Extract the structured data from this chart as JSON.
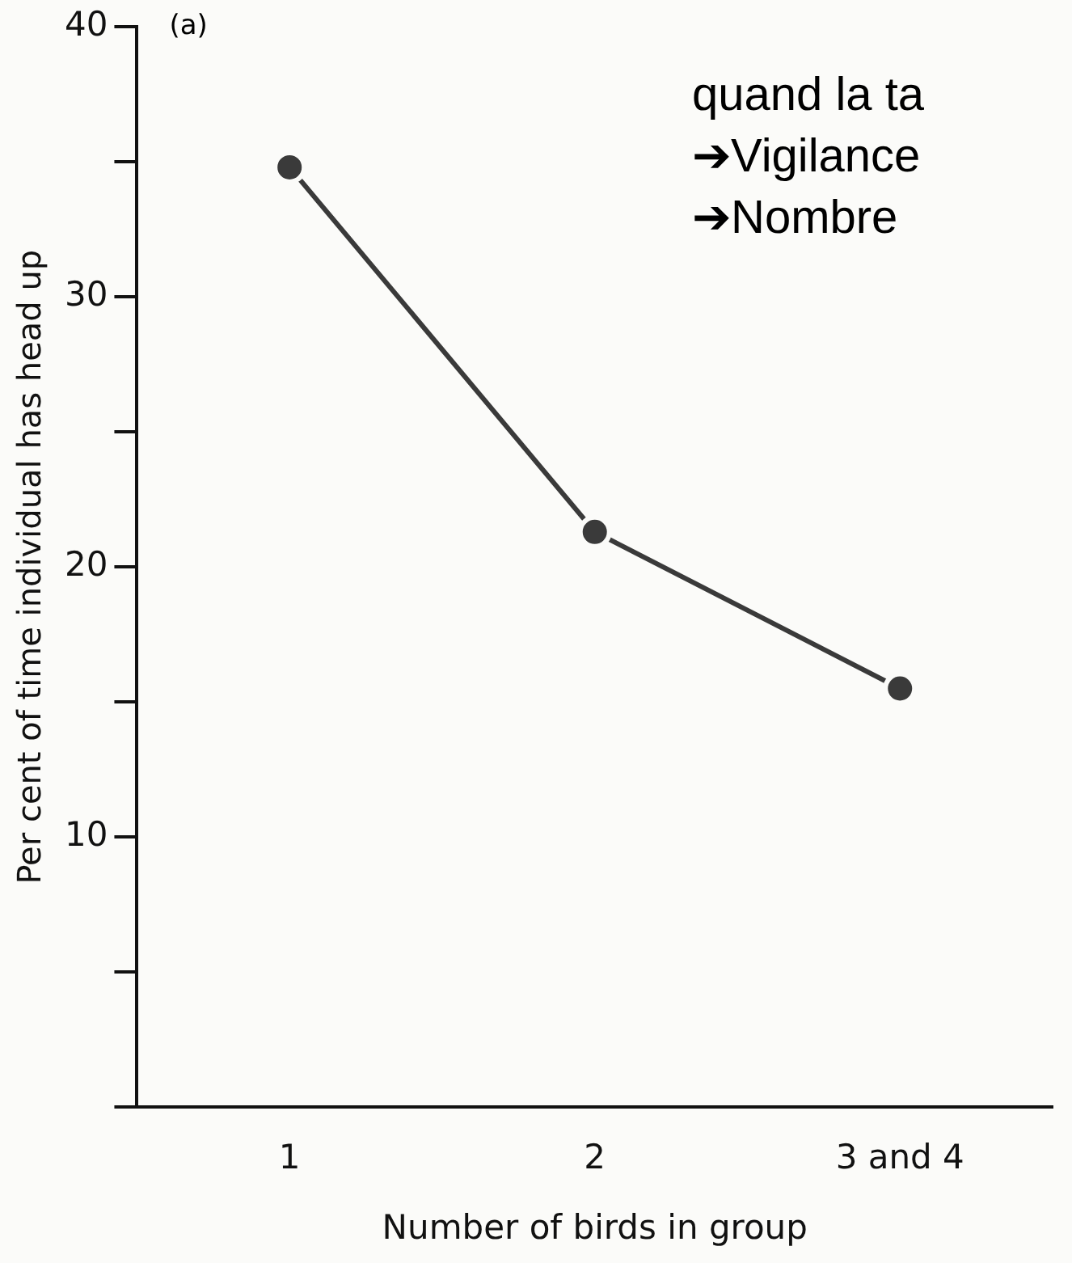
{
  "chart_data": {
    "type": "line",
    "xlabel": "Number of birds in group",
    "ylabel": "Per cent of time individual has head up",
    "annotations": [
      "(a)",
      "quand la ta",
      "➔Vigilance",
      "➔Nombre"
    ],
    "categories": [
      "1",
      "2",
      "3 and 4"
    ],
    "series": [
      {
        "color": "#3a3a3a",
        "values": [
          34.8,
          21.3,
          15.5
        ]
      }
    ],
    "ylim": [
      0,
      40
    ],
    "yticks": [
      {
        "value": 0,
        "label": null
      },
      {
        "value": 5,
        "label": null
      },
      10,
      {
        "value": 15,
        "label": null
      },
      20,
      {
        "value": 25,
        "label": null
      },
      30,
      {
        "value": 35,
        "label": null
      },
      40
    ],
    "grid": false,
    "legend": false,
    "marker": "circle",
    "line_style": "solid"
  }
}
